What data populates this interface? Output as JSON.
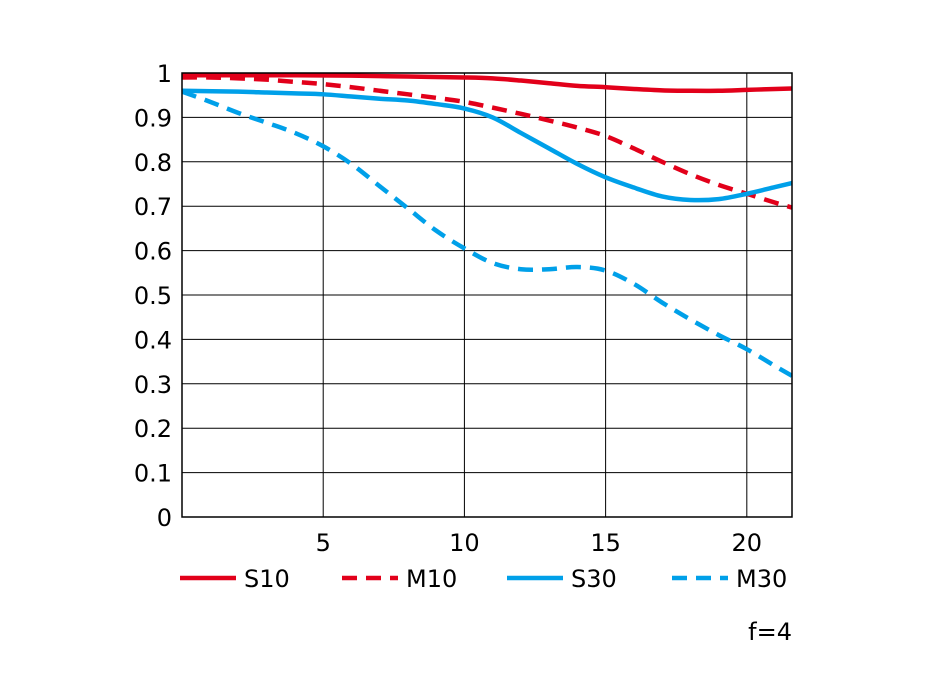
{
  "chart_data": {
    "type": "line",
    "title": "",
    "xlabel": "",
    "ylabel": "",
    "note": "f=4",
    "xlim": [
      0,
      21.6
    ],
    "ylim": [
      0,
      1
    ],
    "x_ticks": [
      5,
      10,
      15,
      20
    ],
    "x_tick_labels": [
      "5",
      "10",
      "15",
      "20"
    ],
    "y_ticks": [
      0,
      0.1,
      0.2,
      0.3,
      0.4,
      0.5,
      0.6,
      0.7,
      0.8,
      0.9,
      1
    ],
    "y_tick_labels": [
      "0",
      "0.1",
      "0.2",
      "0.3",
      "0.4",
      "0.5",
      "0.6",
      "0.7",
      "0.8",
      "0.9",
      "1"
    ],
    "grid": true,
    "legend_position": "bottom",
    "series": [
      {
        "name": "S10",
        "color": "#e2001a",
        "dash": "solid",
        "points": [
          [
            0,
            0.995
          ],
          [
            2,
            0.995
          ],
          [
            4,
            0.995
          ],
          [
            6,
            0.994
          ],
          [
            8,
            0.992
          ],
          [
            10,
            0.99
          ],
          [
            11,
            0.988
          ],
          [
            12,
            0.983
          ],
          [
            13,
            0.977
          ],
          [
            14,
            0.971
          ],
          [
            15,
            0.968
          ],
          [
            16,
            0.964
          ],
          [
            17,
            0.961
          ],
          [
            18,
            0.96
          ],
          [
            19,
            0.96
          ],
          [
            20,
            0.962
          ],
          [
            21,
            0.964
          ],
          [
            21.6,
            0.965
          ]
        ]
      },
      {
        "name": "M10",
        "color": "#e2001a",
        "dash": "dashed",
        "points": [
          [
            0,
            0.99
          ],
          [
            1,
            0.99
          ],
          [
            2,
            0.988
          ],
          [
            3,
            0.985
          ],
          [
            4,
            0.98
          ],
          [
            5,
            0.975
          ],
          [
            6,
            0.968
          ],
          [
            7,
            0.96
          ],
          [
            8,
            0.952
          ],
          [
            9,
            0.944
          ],
          [
            10,
            0.935
          ],
          [
            11,
            0.922
          ],
          [
            12,
            0.908
          ],
          [
            13,
            0.893
          ],
          [
            14,
            0.877
          ],
          [
            15,
            0.858
          ],
          [
            16,
            0.83
          ],
          [
            17,
            0.8
          ],
          [
            18,
            0.772
          ],
          [
            19,
            0.748
          ],
          [
            20,
            0.728
          ],
          [
            21,
            0.708
          ],
          [
            21.6,
            0.697
          ]
        ]
      },
      {
        "name": "S30",
        "color": "#00a0e9",
        "dash": "solid",
        "points": [
          [
            0,
            0.96
          ],
          [
            2,
            0.958
          ],
          [
            3,
            0.956
          ],
          [
            4,
            0.954
          ],
          [
            5,
            0.952
          ],
          [
            6,
            0.947
          ],
          [
            7,
            0.942
          ],
          [
            8,
            0.938
          ],
          [
            9,
            0.93
          ],
          [
            10,
            0.92
          ],
          [
            11,
            0.9
          ],
          [
            12,
            0.865
          ],
          [
            13,
            0.83
          ],
          [
            14,
            0.795
          ],
          [
            15,
            0.765
          ],
          [
            16,
            0.742
          ],
          [
            17,
            0.722
          ],
          [
            18,
            0.714
          ],
          [
            19,
            0.716
          ],
          [
            20,
            0.728
          ],
          [
            21,
            0.743
          ],
          [
            21.6,
            0.752
          ]
        ]
      },
      {
        "name": "M30",
        "color": "#00a0e9",
        "dash": "dashed",
        "points": [
          [
            0,
            0.958
          ],
          [
            1,
            0.935
          ],
          [
            2,
            0.91
          ],
          [
            3,
            0.888
          ],
          [
            4,
            0.865
          ],
          [
            5,
            0.835
          ],
          [
            6,
            0.795
          ],
          [
            7,
            0.745
          ],
          [
            8,
            0.695
          ],
          [
            9,
            0.645
          ],
          [
            10,
            0.605
          ],
          [
            11,
            0.572
          ],
          [
            12,
            0.558
          ],
          [
            13,
            0.558
          ],
          [
            14,
            0.563
          ],
          [
            15,
            0.555
          ],
          [
            16,
            0.525
          ],
          [
            17,
            0.483
          ],
          [
            18,
            0.445
          ],
          [
            19,
            0.41
          ],
          [
            20,
            0.378
          ],
          [
            21,
            0.34
          ],
          [
            21.6,
            0.318
          ]
        ]
      }
    ]
  }
}
